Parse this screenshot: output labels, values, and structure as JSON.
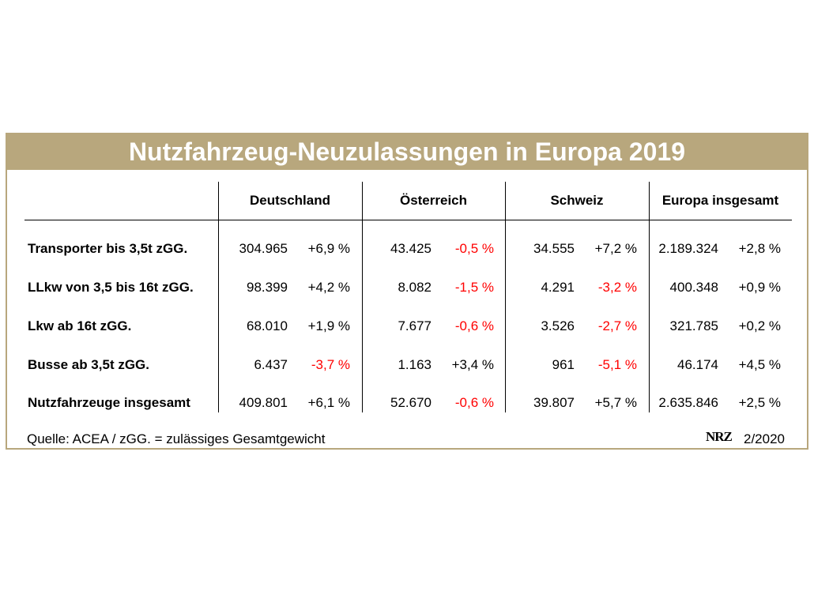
{
  "title": "Nutzfahrzeug-Neuzulassungen in Europa 2019",
  "columns": [
    "Deutschland",
    "Österreich",
    "Schweiz",
    "Europa insgesamt"
  ],
  "rows": [
    {
      "label": "Transporter bis 3,5t zGG.",
      "cells": [
        {
          "value": "304.965",
          "change": "+6,9 %",
          "negative": false
        },
        {
          "value": "43.425",
          "change": "-0,5 %",
          "negative": true
        },
        {
          "value": "34.555",
          "change": "+7,2 %",
          "negative": false
        },
        {
          "value": "2.189.324",
          "change": "+2,8 %",
          "negative": false
        }
      ]
    },
    {
      "label": "LLkw von 3,5 bis 16t zGG.",
      "cells": [
        {
          "value": "98.399",
          "change": "+4,2 %",
          "negative": false
        },
        {
          "value": "8.082",
          "change": "-1,5 %",
          "negative": true
        },
        {
          "value": "4.291",
          "change": "-3,2 %",
          "negative": true
        },
        {
          "value": "400.348",
          "change": "+0,9 %",
          "negative": false
        }
      ]
    },
    {
      "label": "Lkw ab 16t zGG.",
      "cells": [
        {
          "value": "68.010",
          "change": "+1,9 %",
          "negative": false
        },
        {
          "value": "7.677",
          "change": "-0,6 %",
          "negative": true
        },
        {
          "value": "3.526",
          "change": "-2,7 %",
          "negative": true
        },
        {
          "value": "321.785",
          "change": "+0,2 %",
          "negative": false
        }
      ]
    },
    {
      "label": "Busse ab 3,5t zGG.",
      "cells": [
        {
          "value": "6.437",
          "change": "-3,7 %",
          "negative": true
        },
        {
          "value": "1.163",
          "change": "+3,4 %",
          "negative": false
        },
        {
          "value": "961",
          "change": "-5,1 %",
          "negative": true
        },
        {
          "value": "46.174",
          "change": "+4,5 %",
          "negative": false
        }
      ]
    },
    {
      "label": "Nutzfahrzeuge insgesamt",
      "cells": [
        {
          "value": "409.801",
          "change": "+6,1 %",
          "negative": false
        },
        {
          "value": "52.670",
          "change": "-0,6 %",
          "negative": true
        },
        {
          "value": "39.807",
          "change": "+5,7 %",
          "negative": false
        },
        {
          "value": "2.635.846",
          "change": "+2,5 %",
          "negative": false
        }
      ]
    }
  ],
  "footer": {
    "source": "Quelle: ACEA / zGG. = zulässiges Gesamtgewicht",
    "logo": "NRZ",
    "edition": "2/2020"
  },
  "colors": {
    "frame": "#b8a77d",
    "negative": "#ff0000"
  }
}
